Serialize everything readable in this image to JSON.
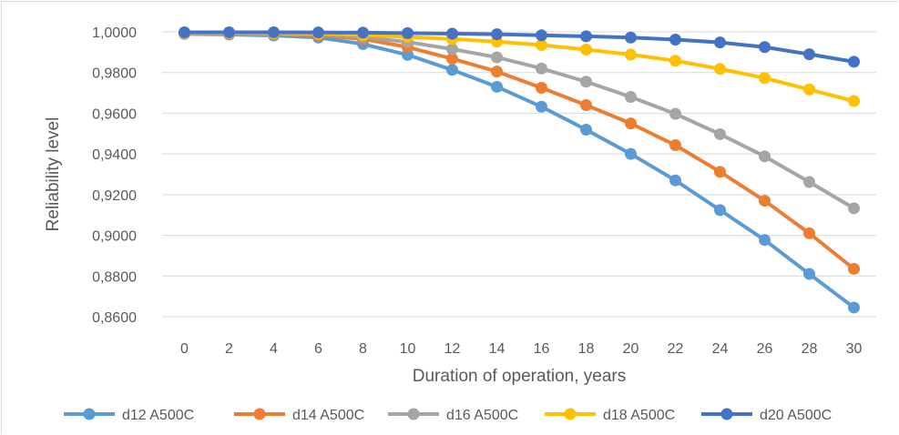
{
  "chart_data": {
    "type": "line",
    "title": "",
    "xlabel": "Duration of operation, years",
    "ylabel": "Reliability level",
    "x": [
      0,
      2,
      4,
      6,
      8,
      10,
      12,
      14,
      16,
      18,
      20,
      22,
      24,
      26,
      28,
      30
    ],
    "ylim": [
      0.86,
      1.0
    ],
    "yticks": [
      "0,8600",
      "0,8800",
      "0,9000",
      "0,9200",
      "0,9400",
      "0,9600",
      "0,9800",
      "1,0000"
    ],
    "grid": true,
    "legend": "bottom",
    "series": [
      {
        "name": "d12 A500C",
        "color": "#5B9BD5",
        "values": [
          0.999,
          0.9987,
          0.9982,
          0.9972,
          0.994,
          0.9887,
          0.9813,
          0.973,
          0.9632,
          0.9519,
          0.94,
          0.927,
          0.9124,
          0.8977,
          0.881,
          0.8645
        ]
      },
      {
        "name": "d14 A500C",
        "color": "#ED7D31",
        "values": [
          0.9992,
          0.999,
          0.9987,
          0.9982,
          0.9965,
          0.9925,
          0.9868,
          0.9805,
          0.9725,
          0.964,
          0.955,
          0.9443,
          0.9312,
          0.917,
          0.901,
          0.8835
        ]
      },
      {
        "name": "d16 A500C",
        "color": "#A5A5A5",
        "values": [
          0.9993,
          0.9992,
          0.999,
          0.9987,
          0.9975,
          0.995,
          0.9915,
          0.9875,
          0.982,
          0.9755,
          0.968,
          0.9597,
          0.9497,
          0.9388,
          0.9262,
          0.9133
        ]
      },
      {
        "name": "d18 A500C",
        "color": "#FFC000",
        "values": [
          0.9996,
          0.9995,
          0.9994,
          0.9992,
          0.9985,
          0.9975,
          0.9965,
          0.9952,
          0.9935,
          0.9913,
          0.9888,
          0.9858,
          0.9818,
          0.9773,
          0.9717,
          0.966
        ]
      },
      {
        "name": "d20 A500C",
        "color": "#4472C4",
        "values": [
          0.9998,
          0.9998,
          0.9998,
          0.9997,
          0.9996,
          0.9994,
          0.9991,
          0.9988,
          0.9983,
          0.9978,
          0.9972,
          0.9962,
          0.9948,
          0.9925,
          0.989,
          0.9853
        ]
      }
    ]
  }
}
